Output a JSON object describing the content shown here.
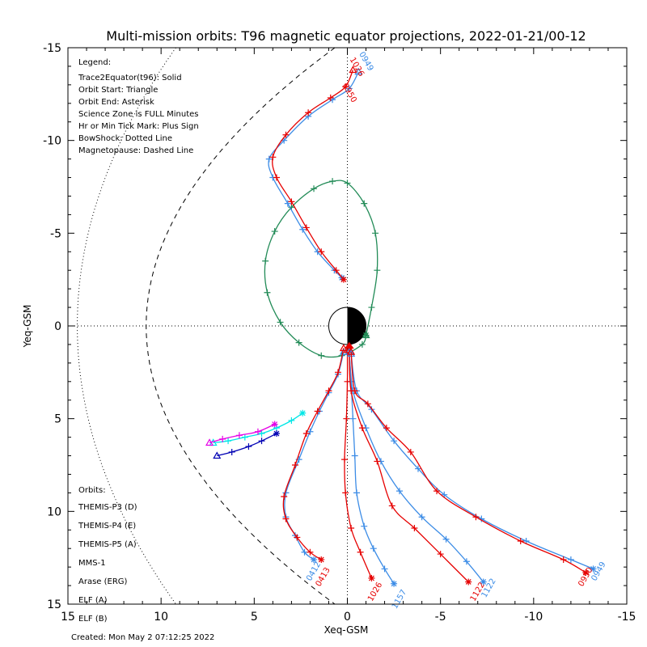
{
  "chart_data": {
    "type": "line",
    "title": "Multi-mission orbits: T96 magnetic equator projections, 2022-01-21/00-12",
    "xlabel": "Xeq-GSM",
    "ylabel": "Yeq-GSM",
    "xlim": [
      15,
      -15
    ],
    "ylim": [
      -15,
      15
    ],
    "x_ticks": [
      15,
      10,
      5,
      0,
      -5,
      -10,
      -15
    ],
    "x_tick_labels": [
      "15",
      "10",
      "5",
      "0",
      "-5",
      "-10",
      "-15"
    ],
    "y_ticks": [
      -15,
      -10,
      -5,
      0,
      5,
      10,
      15
    ],
    "y_tick_labels": [
      "-15",
      "-10",
      "-5",
      "0",
      "5",
      "10",
      "15"
    ],
    "created": "Created: Mon May  2 07:12:25 2022",
    "legend_notes": {
      "heading": "Legend:",
      "lines": [
        "Trace2Equator(t96): Solid",
        "Orbit Start: Triangle",
        "Orbit End: Asterisk",
        "Science Zone is FULL Minutes",
        "Hr or Min Tick Mark: Plus Sign",
        "BowShock: Dotted Line",
        "Magnetopause: Dashed Line"
      ]
    },
    "orbits_heading": "Orbits:",
    "series": [
      {
        "name": "THEMIS-P3 (D)",
        "color": "#00e6e6",
        "points": [
          [
            7.2,
            6.3
          ],
          [
            6.4,
            6.2
          ],
          [
            5.5,
            6.0
          ],
          [
            4.6,
            5.8
          ],
          [
            3.8,
            5.5
          ],
          [
            3.0,
            5.1
          ],
          [
            2.4,
            4.7
          ]
        ]
      },
      {
        "name": "THEMIS-P4 (E)",
        "color": "#0000b4",
        "points": [
          [
            7.0,
            7.0
          ],
          [
            6.2,
            6.8
          ],
          [
            5.3,
            6.5
          ],
          [
            4.6,
            6.2
          ],
          [
            3.8,
            5.8
          ]
        ]
      },
      {
        "name": "THEMIS-P5 (A)",
        "color": "#e600e6",
        "points": [
          [
            7.4,
            6.3
          ],
          [
            6.7,
            6.1
          ],
          [
            5.8,
            5.9
          ],
          [
            4.8,
            5.7
          ],
          [
            3.9,
            5.3
          ]
        ]
      },
      {
        "name": "MMS-1",
        "color": "#000000",
        "points": []
      },
      {
        "name": "Arase (ERG)",
        "color": "#228b57",
        "points": [
          [
            -1.0,
            0.5
          ],
          [
            -1.3,
            -1.0
          ],
          [
            -1.6,
            -3.0
          ],
          [
            -1.5,
            -5.0
          ],
          [
            -0.9,
            -6.6
          ],
          [
            0.0,
            -7.7
          ],
          [
            0.8,
            -7.8
          ],
          [
            1.8,
            -7.4
          ],
          [
            3.0,
            -6.4
          ],
          [
            3.9,
            -5.1
          ],
          [
            4.4,
            -3.5
          ],
          [
            4.3,
            -1.8
          ],
          [
            3.6,
            -0.2
          ],
          [
            2.6,
            0.9
          ],
          [
            1.4,
            1.6
          ],
          [
            0.3,
            1.6
          ],
          [
            -0.8,
            1.0
          ],
          [
            -1.0,
            0.5
          ]
        ]
      },
      {
        "name": "ELF (A)",
        "color": "#3c8ce6",
        "points": [
          [
            -0.6,
            -13.7
          ],
          [
            -0.1,
            -12.8
          ],
          [
            0.8,
            -12.2
          ],
          [
            2.1,
            -11.3
          ],
          [
            3.4,
            -10.0
          ],
          [
            4.2,
            -9.0
          ],
          [
            4.0,
            -8.0
          ],
          [
            3.2,
            -6.6
          ],
          [
            2.4,
            -5.2
          ],
          [
            1.6,
            -4.0
          ],
          [
            0.7,
            -3.0
          ],
          [
            0.3,
            -2.6
          ]
        ]
      },
      {
        "name": "ELF (B)",
        "color": "#e60000",
        "points": [
          [
            -0.3,
            -13.8
          ],
          [
            0.1,
            -12.9
          ],
          [
            0.9,
            -12.3
          ],
          [
            2.1,
            -11.5
          ],
          [
            3.3,
            -10.3
          ],
          [
            4.0,
            -9.1
          ],
          [
            3.8,
            -8.0
          ],
          [
            3.0,
            -6.7
          ],
          [
            2.2,
            -5.3
          ],
          [
            1.4,
            -4.0
          ],
          [
            0.6,
            -3.0
          ],
          [
            0.2,
            -2.5
          ]
        ]
      }
    ],
    "south_tracks": [
      {
        "color": "#3c8ce6",
        "points": [
          [
            0.2,
            1.4
          ],
          [
            0.5,
            2.6
          ],
          [
            1.0,
            3.6
          ],
          [
            1.5,
            4.6
          ],
          [
            2.0,
            5.7
          ],
          [
            2.6,
            7.2
          ],
          [
            3.3,
            9.0
          ],
          [
            3.3,
            10.3
          ],
          [
            2.8,
            11.3
          ],
          [
            2.3,
            12.2
          ],
          [
            1.8,
            12.6
          ]
        ]
      },
      {
        "color": "#e60000",
        "points": [
          [
            0.2,
            1.2
          ],
          [
            0.5,
            2.5
          ],
          [
            1.0,
            3.5
          ],
          [
            1.6,
            4.6
          ],
          [
            2.2,
            5.8
          ],
          [
            2.8,
            7.5
          ],
          [
            3.4,
            9.2
          ],
          [
            3.3,
            10.4
          ],
          [
            2.7,
            11.4
          ],
          [
            2.0,
            12.2
          ],
          [
            1.4,
            12.6
          ]
        ]
      },
      {
        "color": "#3c8ce6",
        "points": [
          [
            -0.1,
            1.4
          ],
          [
            -0.2,
            3.0
          ],
          [
            -0.3,
            5.0
          ],
          [
            -0.4,
            7.0
          ],
          [
            -0.5,
            9.0
          ],
          [
            -0.9,
            10.8
          ],
          [
            -1.4,
            12.0
          ],
          [
            -2.0,
            13.1
          ],
          [
            -2.5,
            13.9
          ]
        ]
      },
      {
        "color": "#e60000",
        "points": [
          [
            0.0,
            1.3
          ],
          [
            0.0,
            3.0
          ],
          [
            0.05,
            5.0
          ],
          [
            0.15,
            7.2
          ],
          [
            0.1,
            9.0
          ],
          [
            -0.2,
            10.9
          ],
          [
            -0.7,
            12.2
          ],
          [
            -1.3,
            13.6
          ]
        ]
      },
      {
        "color": "#3c8ce6",
        "points": [
          [
            -0.1,
            1.4
          ],
          [
            -0.3,
            3.5
          ],
          [
            -1.0,
            5.5
          ],
          [
            -1.8,
            7.3
          ],
          [
            -2.8,
            8.9
          ],
          [
            -4.0,
            10.3
          ],
          [
            -5.3,
            11.5
          ],
          [
            -6.4,
            12.7
          ],
          [
            -7.3,
            13.8
          ]
        ]
      },
      {
        "color": "#e60000",
        "points": [
          [
            -0.1,
            1.3
          ],
          [
            -0.2,
            3.5
          ],
          [
            -0.8,
            5.5
          ],
          [
            -1.6,
            7.3
          ],
          [
            -2.4,
            9.7
          ],
          [
            -3.6,
            10.9
          ],
          [
            -5.0,
            12.3
          ],
          [
            -6.5,
            13.8
          ]
        ]
      },
      {
        "color": "#3c8ce6",
        "points": [
          [
            -0.2,
            1.5
          ],
          [
            -0.5,
            3.5
          ],
          [
            -1.3,
            4.5
          ],
          [
            -2.5,
            6.2
          ],
          [
            -3.8,
            7.7
          ],
          [
            -5.2,
            9.1
          ],
          [
            -7.2,
            10.4
          ],
          [
            -9.6,
            11.6
          ],
          [
            -12.0,
            12.6
          ],
          [
            -13.2,
            13.1
          ]
        ]
      },
      {
        "color": "#e60000",
        "points": [
          [
            -0.2,
            1.4
          ],
          [
            -0.4,
            3.5
          ],
          [
            -1.1,
            4.2
          ],
          [
            -2.1,
            5.5
          ],
          [
            -3.4,
            6.8
          ],
          [
            -4.8,
            8.9
          ],
          [
            -6.9,
            10.3
          ],
          [
            -9.3,
            11.6
          ],
          [
            -11.6,
            12.6
          ],
          [
            -12.8,
            13.3
          ]
        ]
      }
    ],
    "time_labels": [
      {
        "text": "0950",
        "color": "#e60000",
        "x": -12.9,
        "y": 13.6,
        "rotate": -60
      },
      {
        "text": "0949",
        "color": "#3c8ce6",
        "x": -13.6,
        "y": 13.3,
        "rotate": -60
      },
      {
        "text": "1122",
        "color": "#3c8ce6",
        "x": -7.7,
        "y": 14.2,
        "rotate": -60
      },
      {
        "text": "1122",
        "color": "#e60000",
        "x": -7.1,
        "y": 14.4,
        "rotate": -60
      },
      {
        "text": "1157",
        "color": "#3c8ce6",
        "x": -2.9,
        "y": 14.8,
        "rotate": -60
      },
      {
        "text": "1026",
        "color": "#e60000",
        "x": -1.6,
        "y": 14.4,
        "rotate": -60
      },
      {
        "text": "0413",
        "color": "#e60000",
        "x": 1.2,
        "y": 13.6,
        "rotate": -60
      },
      {
        "text": "0412",
        "color": "#3c8ce6",
        "x": 1.7,
        "y": 13.3,
        "rotate": -60
      },
      {
        "text": "0950",
        "color": "#e60000",
        "x": 0.0,
        "y": -12.5,
        "rotate": 60
      },
      {
        "text": "1026",
        "color": "#e60000",
        "x": -0.4,
        "y": -13.9,
        "rotate": 60
      },
      {
        "text": "0949",
        "color": "#3c8ce6",
        "x": -0.9,
        "y": -14.2,
        "rotate": 60
      }
    ],
    "bowshock": "dotted",
    "magnetopause": "dashed",
    "grid": false
  }
}
